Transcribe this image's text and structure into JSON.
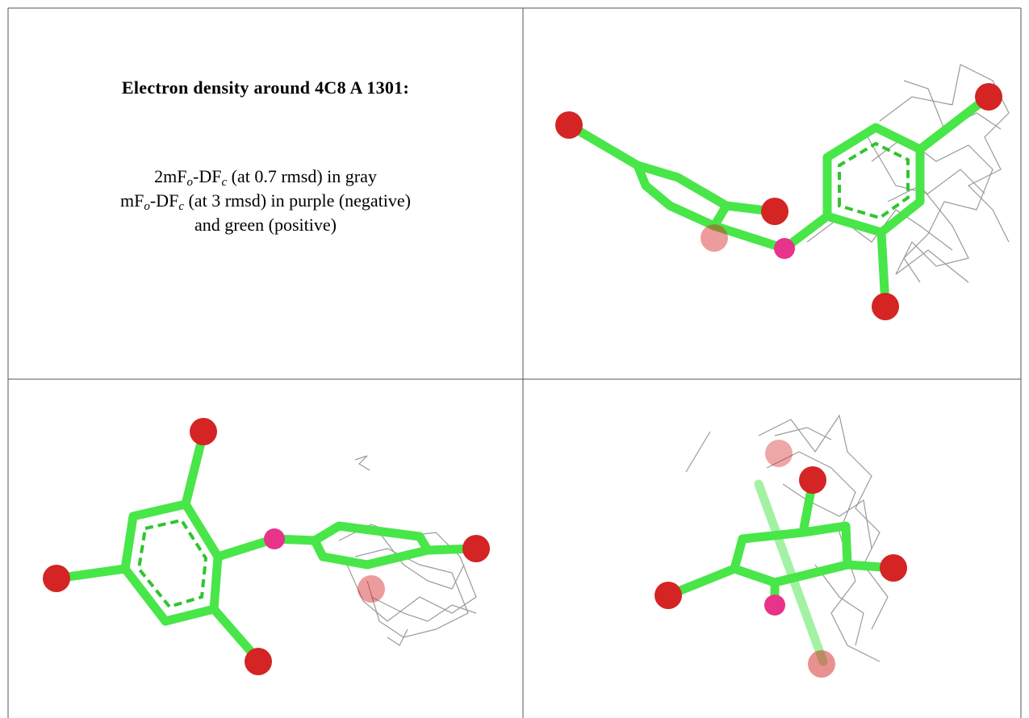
{
  "panel": {
    "title": "Electron density around 4C8 A 1301:",
    "caption": [
      [
        {
          "text": "2mF"
        },
        {
          "sub": "o"
        },
        {
          "text": "-DF"
        },
        {
          "sub": "c"
        },
        {
          "text": " (at 0.7 rmsd) in gray"
        }
      ],
      [
        {
          "text": "mF"
        },
        {
          "sub": "o"
        },
        {
          "text": "-DF"
        },
        {
          "sub": "c"
        },
        {
          "text": " (at 3 rmsd) in purple (negative)"
        }
      ],
      [
        {
          "text": "and green (positive)"
        }
      ]
    ]
  }
}
